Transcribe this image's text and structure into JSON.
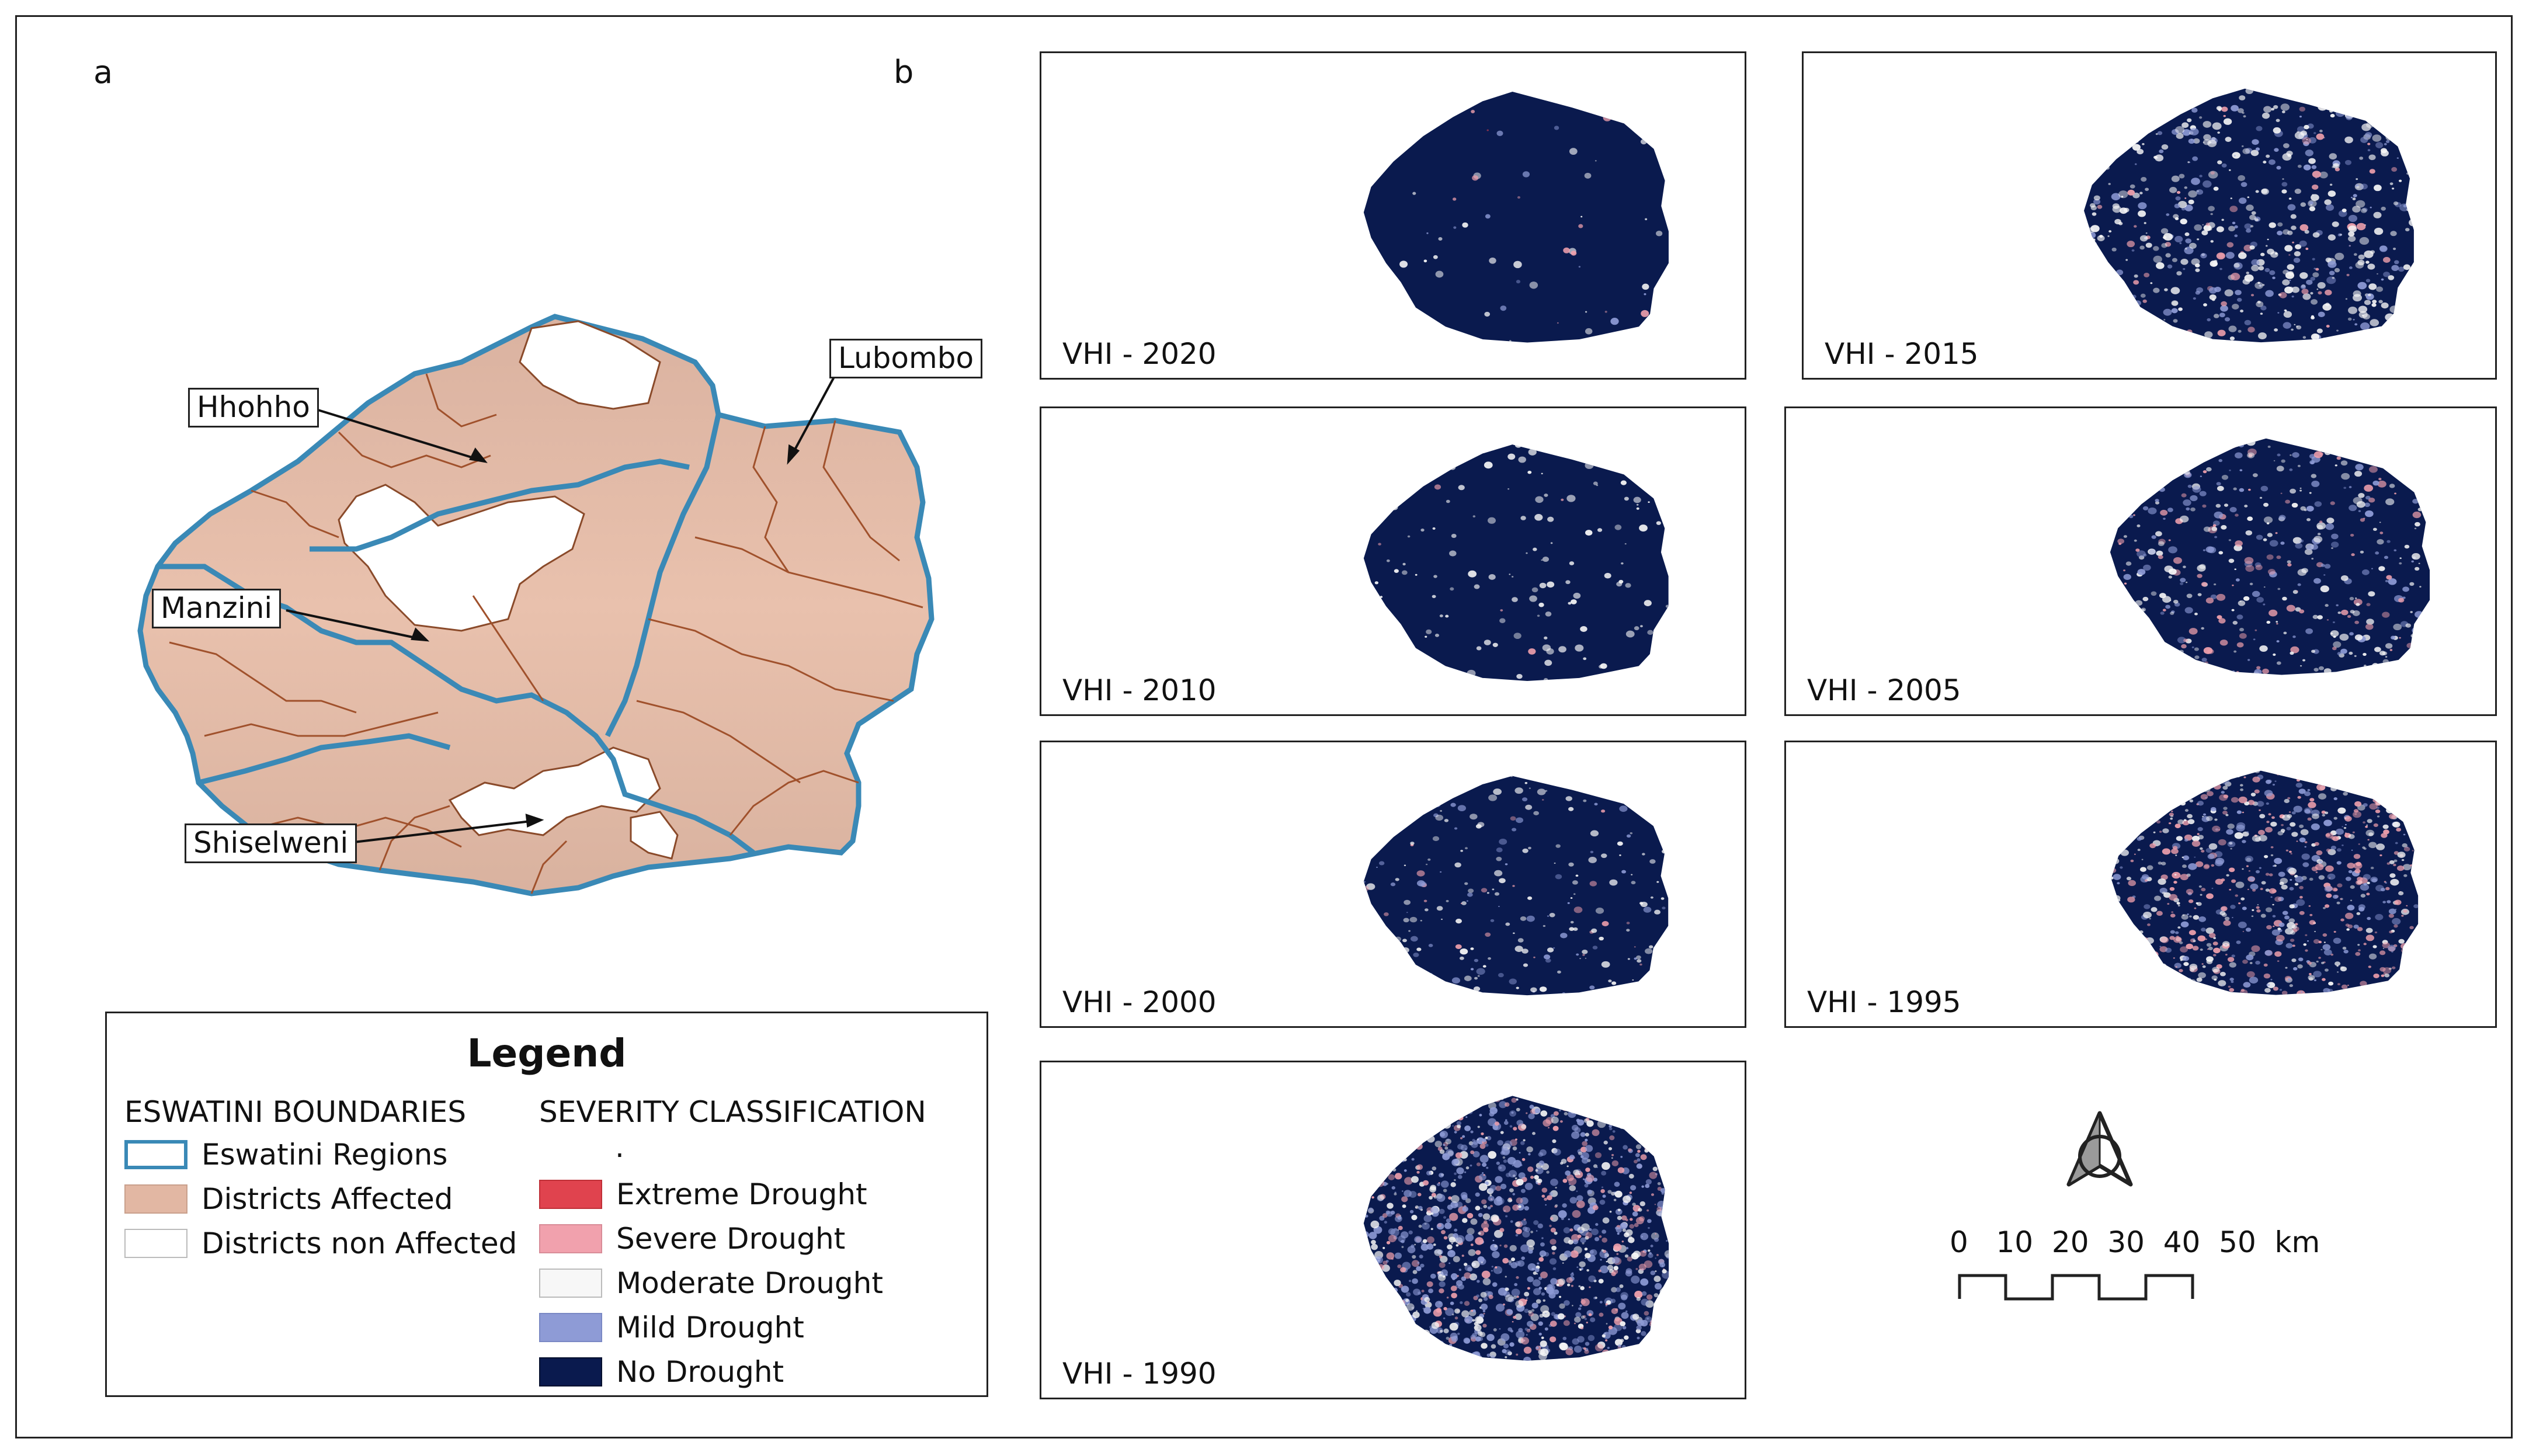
{
  "panel_labels": {
    "a": "a",
    "b": "b"
  },
  "region_callouts": [
    {
      "name": "Hhohho"
    },
    {
      "name": "Lubombo"
    },
    {
      "name": "Manzini"
    },
    {
      "name": "Shiselweni"
    }
  ],
  "legend": {
    "title": "Legend",
    "boundaries_heading": "ESWATINI BOUNDARIES",
    "boundaries": [
      {
        "label": "Eswatini Regions",
        "color": "#3a89b6",
        "style": "outline"
      },
      {
        "label": "Districts Affected",
        "color": "#e2b7a3",
        "style": "fill"
      },
      {
        "label": "Districts non Affected",
        "color": "#ffffff",
        "style": "fill"
      }
    ],
    "severity_heading": "SEVERITY CLASSIFICATION",
    "severity_note": ".",
    "severity": [
      {
        "label": "Extreme Drought",
        "color": "#e0434e"
      },
      {
        "label": "Severe Drought",
        "color": "#f1a1ad"
      },
      {
        "label": "Moderate Drought",
        "color": "#f7f7f7"
      },
      {
        "label": "Mild Drought",
        "color": "#8e9bd6"
      },
      {
        "label": "No Drought",
        "color": "#0a1a4e"
      }
    ]
  },
  "vhi_panels": [
    {
      "title": "VHI - 2020",
      "year": 2020
    },
    {
      "title": "VHI - 2015",
      "year": 2015
    },
    {
      "title": "VHI - 2010",
      "year": 2010
    },
    {
      "title": "VHI - 2005",
      "year": 2005
    },
    {
      "title": "VHI - 2000",
      "year": 2000
    },
    {
      "title": "VHI - 1995",
      "year": 1995
    },
    {
      "title": "VHI - 1990",
      "year": 1990
    }
  ],
  "scale_bar": {
    "labels": "0   10  20  30  40  50  km",
    "ticks": [
      0,
      10,
      20,
      30,
      40,
      50
    ],
    "unit": "km"
  },
  "north_arrow": {
    "icon": "north-arrow-icon"
  }
}
